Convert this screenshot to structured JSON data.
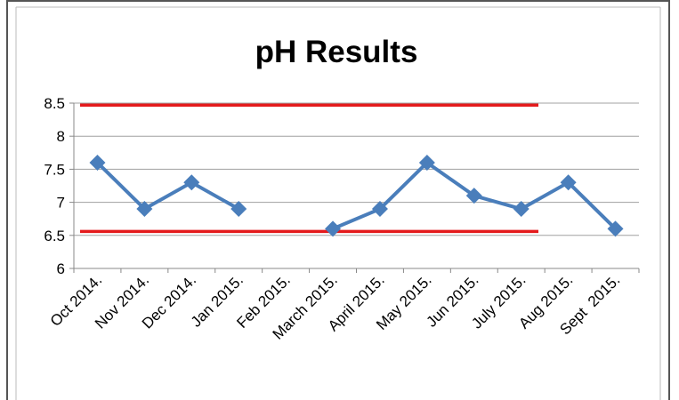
{
  "chart_data": {
    "type": "line",
    "title": "pH Results",
    "categories": [
      "Oct 2014.",
      "Nov 2014.",
      "Dec 2014.",
      "Jan 2015.",
      "Feb 2015.",
      "March 2015.",
      "April 2015.",
      "May 2015.",
      "Jun 2015.",
      "July 2015.",
      "Aug 2015.",
      "Sept  2015."
    ],
    "series": [
      {
        "color": "#4a7ebb",
        "values": [
          7.6,
          6.9,
          7.3,
          6.9,
          null,
          6.6,
          6.9,
          7.6,
          7.1,
          6.9,
          7.3,
          6.6
        ]
      }
    ],
    "reference_lines": [
      8.47,
      6.56
    ],
    "reference_color": "#e41a1c",
    "ylim": [
      6,
      8.5
    ],
    "yticks": [
      6,
      6.5,
      7,
      7.5,
      8,
      8.5
    ],
    "grid": true
  }
}
